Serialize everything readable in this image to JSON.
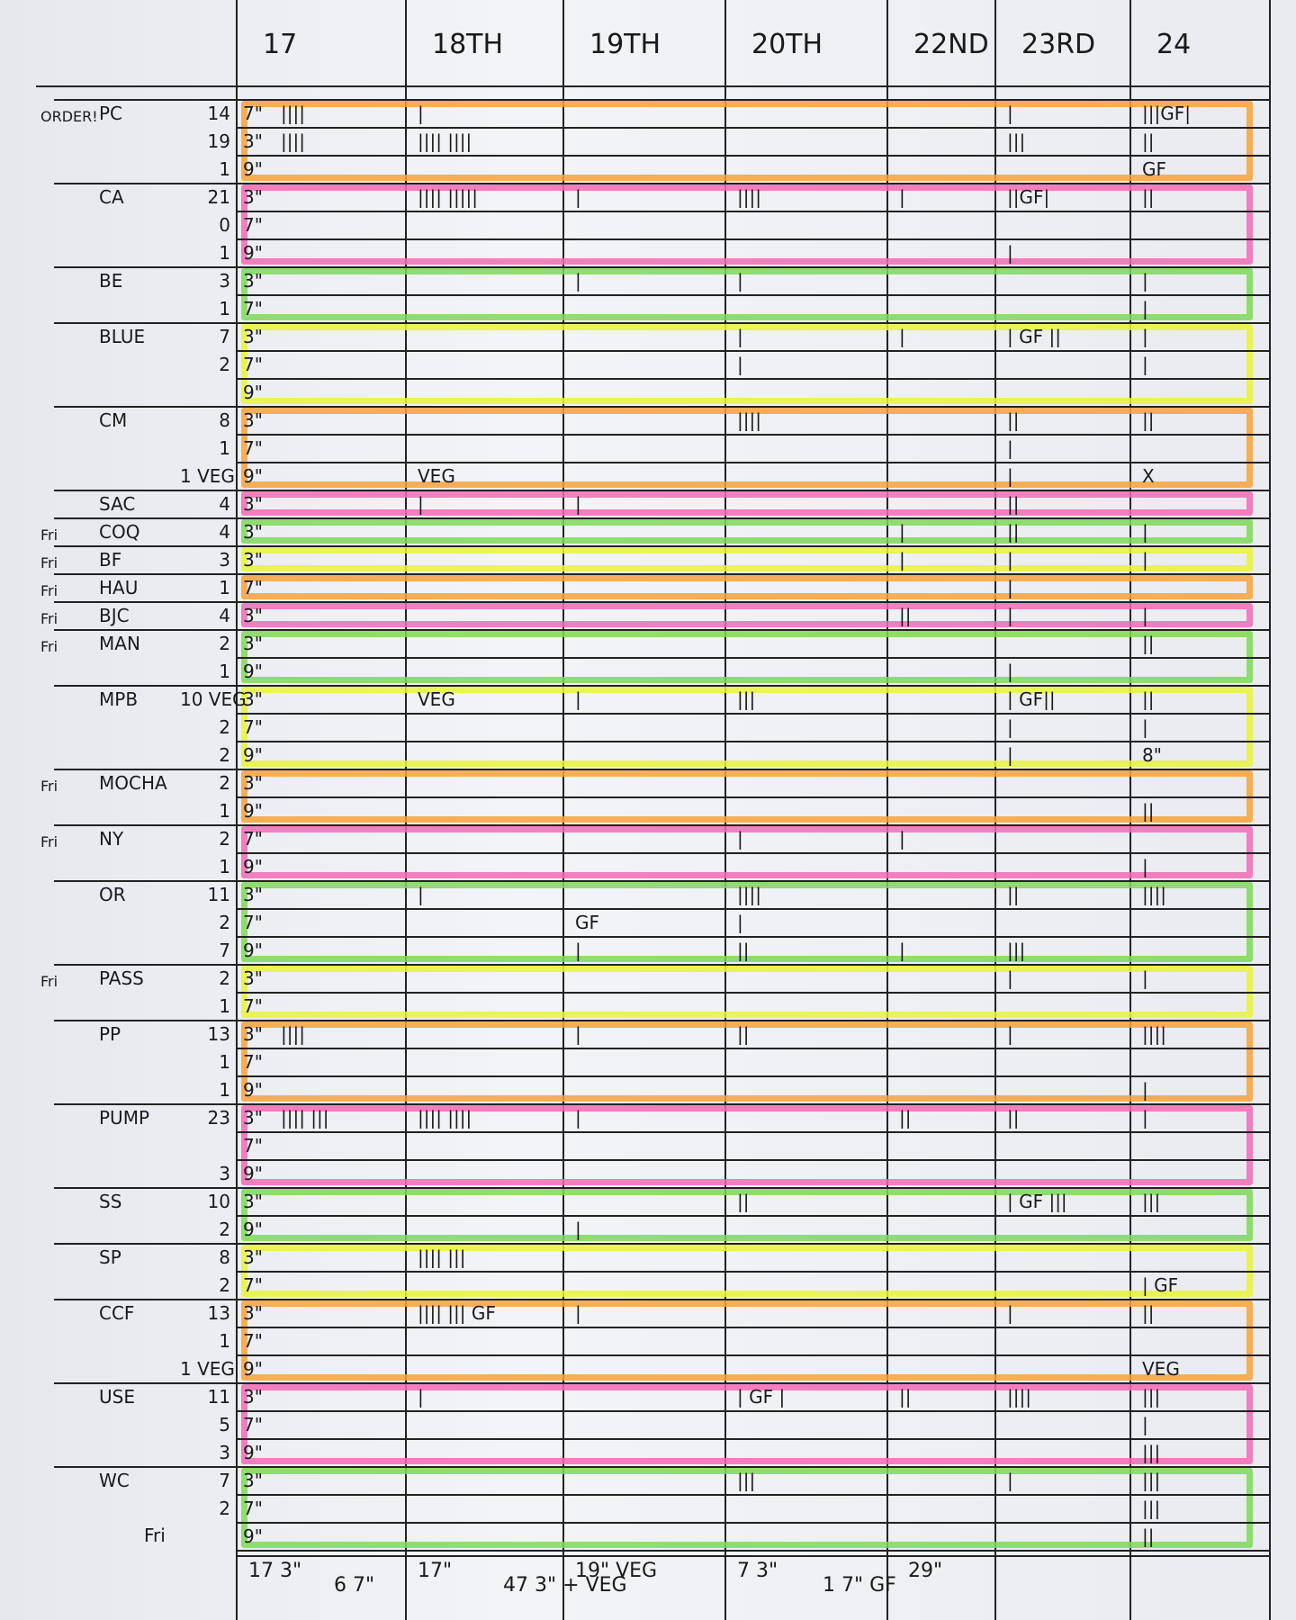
{
  "header": {
    "columns": [
      "17",
      "18TH",
      "19TH",
      "20TH",
      "22ND",
      "23RD",
      "24"
    ]
  },
  "groups": [
    {
      "name": "PC",
      "note": "ORDER!",
      "color": "#f7a23b",
      "rows": [
        {
          "count": "14",
          "size": "7\"",
          "cells": [
            "||||",
            "|",
            null,
            null,
            null,
            "|",
            "|||GF|"
          ]
        },
        {
          "count": "19",
          "size": "3\"",
          "cells": [
            "||||",
            "|||| ||||",
            null,
            null,
            null,
            "|||",
            "||"
          ]
        },
        {
          "count": "1",
          "size": "9\"",
          "cells": [
            null,
            null,
            null,
            null,
            null,
            null,
            "GF"
          ]
        }
      ]
    },
    {
      "name": "CA",
      "note": null,
      "color": "#f26bb5",
      "rows": [
        {
          "count": "21",
          "size": "3\"",
          "cells": [
            null,
            "|||| |||||",
            "|",
            "||||",
            "|",
            "||GF|",
            "||"
          ]
        },
        {
          "count": "0",
          "size": "7\"",
          "cells": [
            null,
            null,
            null,
            null,
            null,
            null,
            null
          ]
        },
        {
          "count": "1",
          "size": "9\"",
          "cells": [
            null,
            null,
            null,
            null,
            null,
            "|",
            null
          ]
        }
      ]
    },
    {
      "name": "BE",
      "note": null,
      "color": "#7ed957",
      "rows": [
        {
          "count": "3",
          "size": "3\"",
          "cells": [
            null,
            null,
            "|",
            "|",
            null,
            null,
            "|"
          ]
        },
        {
          "count": "1",
          "size": "7\"",
          "cells": [
            null,
            null,
            null,
            null,
            null,
            null,
            "|"
          ]
        }
      ]
    },
    {
      "name": "BLUE",
      "note": null,
      "color": "#e8f53a",
      "rows": [
        {
          "count": "7",
          "size": "3\"",
          "cells": [
            null,
            null,
            null,
            "|",
            "|",
            "| GF ||",
            "|"
          ]
        },
        {
          "count": "2",
          "size": "7\"",
          "cells": [
            null,
            null,
            null,
            "|",
            null,
            null,
            "|"
          ]
        },
        {
          "count": null,
          "size": "9\"",
          "cells": [
            null,
            null,
            null,
            null,
            null,
            null,
            null
          ]
        }
      ]
    },
    {
      "name": "CM",
      "note": null,
      "color": "#f7a23b",
      "rows": [
        {
          "count": "8",
          "size": "3\"",
          "cells": [
            null,
            null,
            null,
            "||||",
            null,
            "||",
            "||"
          ]
        },
        {
          "count": "1",
          "size": "7\"",
          "cells": [
            null,
            null,
            null,
            null,
            null,
            "|",
            null
          ]
        },
        {
          "count": "1 VEG",
          "size": "9\"",
          "cells": [
            null,
            "VEG",
            null,
            null,
            null,
            "|",
            "X"
          ]
        }
      ]
    },
    {
      "name": "SAC",
      "note": null,
      "color": "#f26bb5",
      "rows": [
        {
          "count": "4",
          "size": "3\"",
          "cells": [
            null,
            "|",
            "|",
            null,
            null,
            "||",
            null
          ]
        }
      ]
    },
    {
      "name": "COQ",
      "note": "Fri",
      "color": "#7ed957",
      "rows": [
        {
          "count": "4",
          "size": "3\"",
          "cells": [
            null,
            null,
            null,
            null,
            "|",
            "||",
            "|"
          ]
        }
      ]
    },
    {
      "name": "BF",
      "note": "Fri",
      "color": "#e8f53a",
      "rows": [
        {
          "count": "3",
          "size": "3\"",
          "cells": [
            null,
            null,
            null,
            null,
            "|",
            "|",
            "|"
          ]
        }
      ]
    },
    {
      "name": "HAU",
      "note": "Fri",
      "color": "#f7a23b",
      "rows": [
        {
          "count": "1",
          "size": "7\"",
          "cells": [
            null,
            null,
            null,
            null,
            null,
            "|",
            null
          ]
        }
      ]
    },
    {
      "name": "BJC",
      "note": "Fri",
      "color": "#f26bb5",
      "rows": [
        {
          "count": "4",
          "size": "3\"",
          "cells": [
            null,
            null,
            null,
            null,
            "||",
            "|",
            "|"
          ]
        }
      ]
    },
    {
      "name": "MAN",
      "note": "Fri",
      "color": "#7ed957",
      "rows": [
        {
          "count": "2",
          "size": "3\"",
          "cells": [
            null,
            null,
            null,
            null,
            null,
            null,
            "||"
          ]
        },
        {
          "count": "1",
          "size": "9\"",
          "cells": [
            null,
            null,
            null,
            null,
            null,
            "|",
            null
          ]
        }
      ]
    },
    {
      "name": "MPB",
      "note": null,
      "color": "#e8f53a",
      "rows": [
        {
          "count": "10 VEG",
          "size": "3\"",
          "cells": [
            null,
            "VEG",
            "|",
            "|||",
            null,
            "| GF||",
            "||"
          ]
        },
        {
          "count": "2",
          "size": "7\"",
          "cells": [
            null,
            null,
            null,
            null,
            null,
            "|",
            "|"
          ]
        },
        {
          "count": "2",
          "size": "9\"",
          "cells": [
            null,
            null,
            null,
            null,
            null,
            "|",
            "8\""
          ]
        }
      ]
    },
    {
      "name": "MOCHA",
      "note": "Fri",
      "color": "#f7a23b",
      "rows": [
        {
          "count": "2",
          "size": "3\"",
          "cells": [
            null,
            null,
            null,
            null,
            null,
            null,
            null
          ]
        },
        {
          "count": "1",
          "size": "9\"",
          "cells": [
            null,
            null,
            null,
            null,
            null,
            null,
            "||"
          ]
        }
      ]
    },
    {
      "name": "NY",
      "note": "Fri",
      "color": "#f26bb5",
      "rows": [
        {
          "count": "2",
          "size": "7\"",
          "cells": [
            null,
            null,
            null,
            "|",
            "|",
            null,
            null
          ]
        },
        {
          "count": "1",
          "size": "9\"",
          "cells": [
            null,
            null,
            null,
            null,
            null,
            null,
            "|"
          ]
        }
      ]
    },
    {
      "name": "OR",
      "note": null,
      "color": "#7ed957",
      "rows": [
        {
          "count": "11",
          "size": "3\"",
          "cells": [
            null,
            "|",
            null,
            "||||",
            null,
            "||",
            "||||"
          ]
        },
        {
          "count": "2",
          "size": "7\"",
          "cells": [
            null,
            null,
            "GF",
            "|",
            null,
            null,
            null
          ]
        },
        {
          "count": "7",
          "size": "9\"",
          "cells": [
            null,
            null,
            "|",
            "||",
            "|",
            "|||",
            null
          ]
        }
      ]
    },
    {
      "name": "PASS",
      "note": "Fri",
      "color": "#e8f53a",
      "rows": [
        {
          "count": "2",
          "size": "3\"",
          "cells": [
            null,
            null,
            null,
            null,
            null,
            "|",
            "|"
          ]
        },
        {
          "count": "1",
          "size": "7\"",
          "cells": [
            null,
            null,
            null,
            null,
            null,
            null,
            null
          ]
        }
      ]
    },
    {
      "name": "PP",
      "note": null,
      "color": "#f7a23b",
      "rows": [
        {
          "count": "13",
          "size": "3\"",
          "cells": [
            "||||",
            null,
            "|",
            "||",
            null,
            "|",
            "||||"
          ]
        },
        {
          "count": "1",
          "size": "7\"",
          "cells": [
            null,
            null,
            null,
            null,
            null,
            null,
            null
          ]
        },
        {
          "count": "1",
          "size": "9\"",
          "cells": [
            null,
            null,
            null,
            null,
            null,
            null,
            "|"
          ]
        }
      ]
    },
    {
      "name": "PUMP",
      "note": null,
      "color": "#f26bb5",
      "rows": [
        {
          "count": "23",
          "size": "3\"",
          "cells": [
            "|||| |||",
            "|||| ||||",
            "|",
            null,
            "||",
            "||",
            "|"
          ]
        },
        {
          "count": null,
          "size": "7\"",
          "cells": [
            null,
            null,
            null,
            null,
            null,
            null,
            null
          ]
        },
        {
          "count": "3",
          "size": "9\"",
          "cells": [
            null,
            null,
            null,
            null,
            null,
            null,
            null
          ]
        }
      ]
    },
    {
      "name": "SS",
      "note": null,
      "color": "#7ed957",
      "rows": [
        {
          "count": "10",
          "size": "3\"",
          "cells": [
            null,
            null,
            null,
            "||",
            null,
            "| GF |||",
            "|||"
          ]
        },
        {
          "count": "2",
          "size": "9\"",
          "cells": [
            null,
            null,
            "|",
            null,
            null,
            null,
            null
          ]
        }
      ]
    },
    {
      "name": "SP",
      "note": null,
      "color": "#e8f53a",
      "rows": [
        {
          "count": "8",
          "size": "3\"",
          "cells": [
            null,
            "|||| |||",
            null,
            null,
            null,
            null,
            null
          ]
        },
        {
          "count": "2",
          "size": "7\"",
          "cells": [
            null,
            null,
            null,
            null,
            null,
            null,
            "| GF"
          ]
        }
      ]
    },
    {
      "name": "CCF",
      "note": null,
      "color": "#f7a23b",
      "rows": [
        {
          "count": "13",
          "size": "3\"",
          "cells": [
            null,
            "|||| ||| GF",
            "|",
            null,
            null,
            "|",
            "||"
          ]
        },
        {
          "count": "1",
          "size": "7\"",
          "cells": [
            null,
            null,
            null,
            null,
            null,
            null,
            null
          ]
        },
        {
          "count": "1 VEG",
          "size": "9\"",
          "cells": [
            null,
            null,
            null,
            null,
            null,
            null,
            "VEG"
          ]
        }
      ]
    },
    {
      "name": "USE",
      "note": null,
      "color": "#f26bb5",
      "rows": [
        {
          "count": "11",
          "size": "3\"",
          "cells": [
            null,
            "|",
            null,
            "| GF |",
            "||",
            "||||",
            "|||"
          ]
        },
        {
          "count": "5",
          "size": "7\"",
          "cells": [
            null,
            null,
            null,
            null,
            null,
            null,
            "|"
          ]
        },
        {
          "count": "3",
          "size": "9\"",
          "cells": [
            null,
            null,
            null,
            null,
            null,
            null,
            "|||"
          ]
        }
      ]
    },
    {
      "name": "WC",
      "note": null,
      "color": "#7ed957",
      "rows": [
        {
          "count": "7",
          "size": "3\"",
          "cells": [
            null,
            null,
            null,
            "|||",
            null,
            "|",
            "|||"
          ]
        },
        {
          "count": "2",
          "size": "7\"",
          "cells": [
            null,
            null,
            null,
            null,
            null,
            null,
            "|||"
          ]
        },
        {
          "count": null,
          "size": "9\"",
          "cells": [
            null,
            null,
            null,
            null,
            null,
            null,
            "||"
          ]
        }
      ]
    }
  ],
  "footer": [
    [
      "17 3\"",
      "6 7\""
    ],
    [
      "17\"",
      "47 3\" + VEG"
    ],
    [
      "19\" VEG"
    ],
    [
      "7 3\"",
      "1 7\" GF",
      "29\""
    ]
  ],
  "footer_note": "Fri"
}
